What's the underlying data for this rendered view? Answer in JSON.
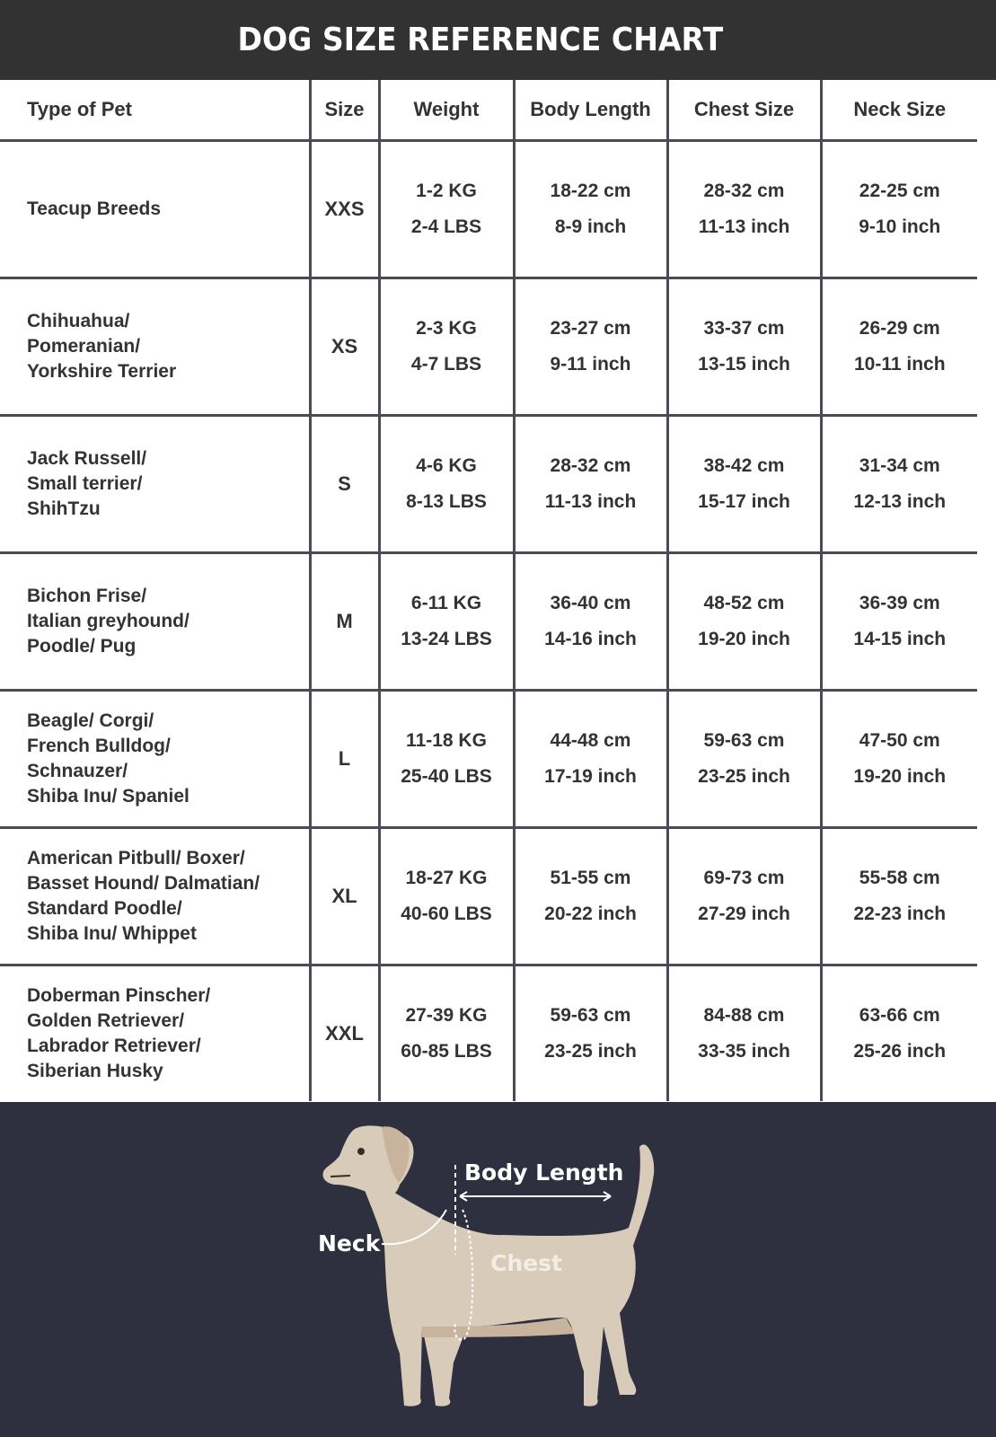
{
  "title": "DOG SIZE REFERENCE CHART",
  "columns": [
    "Type of Pet",
    "Size",
    "Weight",
    "Body Length",
    "Chest Size",
    "Neck Size"
  ],
  "rows": [
    {
      "type": [
        "Teacup Breeds"
      ],
      "size": "XXS",
      "weight": [
        "1-2 KG",
        "2-4 LBS"
      ],
      "body_length": [
        "18-22 cm",
        "8-9 inch"
      ],
      "chest": [
        "28-32 cm",
        "11-13 inch"
      ],
      "neck": [
        "22-25 cm",
        "9-10 inch"
      ]
    },
    {
      "type": [
        "Chihuahua/",
        "Pomeranian/",
        "Yorkshire Terrier"
      ],
      "size": "XS",
      "weight": [
        "2-3 KG",
        "4-7 LBS"
      ],
      "body_length": [
        "23-27 cm",
        "9-11 inch"
      ],
      "chest": [
        "33-37 cm",
        "13-15 inch"
      ],
      "neck": [
        "26-29 cm",
        "10-11 inch"
      ]
    },
    {
      "type": [
        "Jack Russell/",
        "Small terrier/",
        "ShihTzu"
      ],
      "size": "S",
      "weight": [
        "4-6 KG",
        "8-13 LBS"
      ],
      "body_length": [
        "28-32 cm",
        "11-13 inch"
      ],
      "chest": [
        "38-42 cm",
        "15-17 inch"
      ],
      "neck": [
        "31-34 cm",
        "12-13 inch"
      ]
    },
    {
      "type": [
        "Bichon Frise/",
        "Italian greyhound/",
        "Poodle/ Pug"
      ],
      "size": "M",
      "weight": [
        "6-11 KG",
        "13-24 LBS"
      ],
      "body_length": [
        "36-40 cm",
        "14-16 inch"
      ],
      "chest": [
        "48-52 cm",
        "19-20 inch"
      ],
      "neck": [
        "36-39 cm",
        "14-15 inch"
      ]
    },
    {
      "type": [
        "Beagle/ Corgi/",
        "French Bulldog/",
        "Schnauzer/",
        "Shiba Inu/ Spaniel"
      ],
      "size": "L",
      "weight": [
        "11-18 KG",
        "25-40 LBS"
      ],
      "body_length": [
        "44-48 cm",
        "17-19 inch"
      ],
      "chest": [
        "59-63 cm",
        "23-25 inch"
      ],
      "neck": [
        "47-50 cm",
        "19-20 inch"
      ]
    },
    {
      "type": [
        "American Pitbull/ Boxer/",
        "Basset Hound/ Dalmatian/",
        "Standard Poodle/",
        "Shiba Inu/ Whippet"
      ],
      "size": "XL",
      "weight": [
        "18-27 KG",
        "40-60 LBS"
      ],
      "body_length": [
        "51-55 cm",
        "20-22 inch"
      ],
      "chest": [
        "69-73 cm",
        "27-29 inch"
      ],
      "neck": [
        "55-58 cm",
        "22-23 inch"
      ]
    },
    {
      "type": [
        "Doberman Pinscher/",
        "Golden Retriever/",
        "Labrador Retriever/",
        "Siberian Husky"
      ],
      "size": "XXL",
      "weight": [
        "27-39 KG",
        "60-85 LBS"
      ],
      "body_length": [
        "59-63 cm",
        "23-25 inch"
      ],
      "chest": [
        "84-88 cm",
        "33-35 inch"
      ],
      "neck": [
        "63-66 cm",
        "25-26 inch"
      ]
    }
  ],
  "diagram": {
    "body_length": "Body Length",
    "neck": "Neck",
    "chest": "Chest"
  },
  "colors": {
    "title_bar": "#323232",
    "panel": "#2e3040",
    "grid": "#4b4b55",
    "dog": "#d9cbb9",
    "dog_shade": "#c8b39c"
  }
}
